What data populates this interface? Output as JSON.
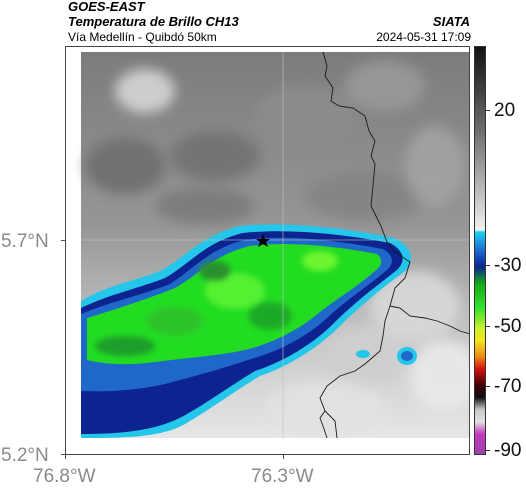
{
  "header": {
    "satellite": "GOES-EAST",
    "product": "Temperatura de Brillo CH13",
    "region": "Vía Medellín - Quibdó 50km",
    "agency": "SIATA",
    "timestamp": "2024-05-31 17:09"
  },
  "axes": {
    "lat_ticks": [
      "5.7°N",
      "5.2°N"
    ],
    "lon_ticks": [
      "76.8°W",
      "76.3°W"
    ]
  },
  "colorbar": {
    "ticks": [
      "20",
      "-30",
      "-50",
      "-70",
      "-90"
    ]
  },
  "colors": {
    "cold_core": "#22dd22",
    "mid_cold": "#0a1f8f",
    "edge_cyan": "#22c4e8",
    "warm_gray": "#8a8a8a",
    "marker": "#000000"
  }
}
